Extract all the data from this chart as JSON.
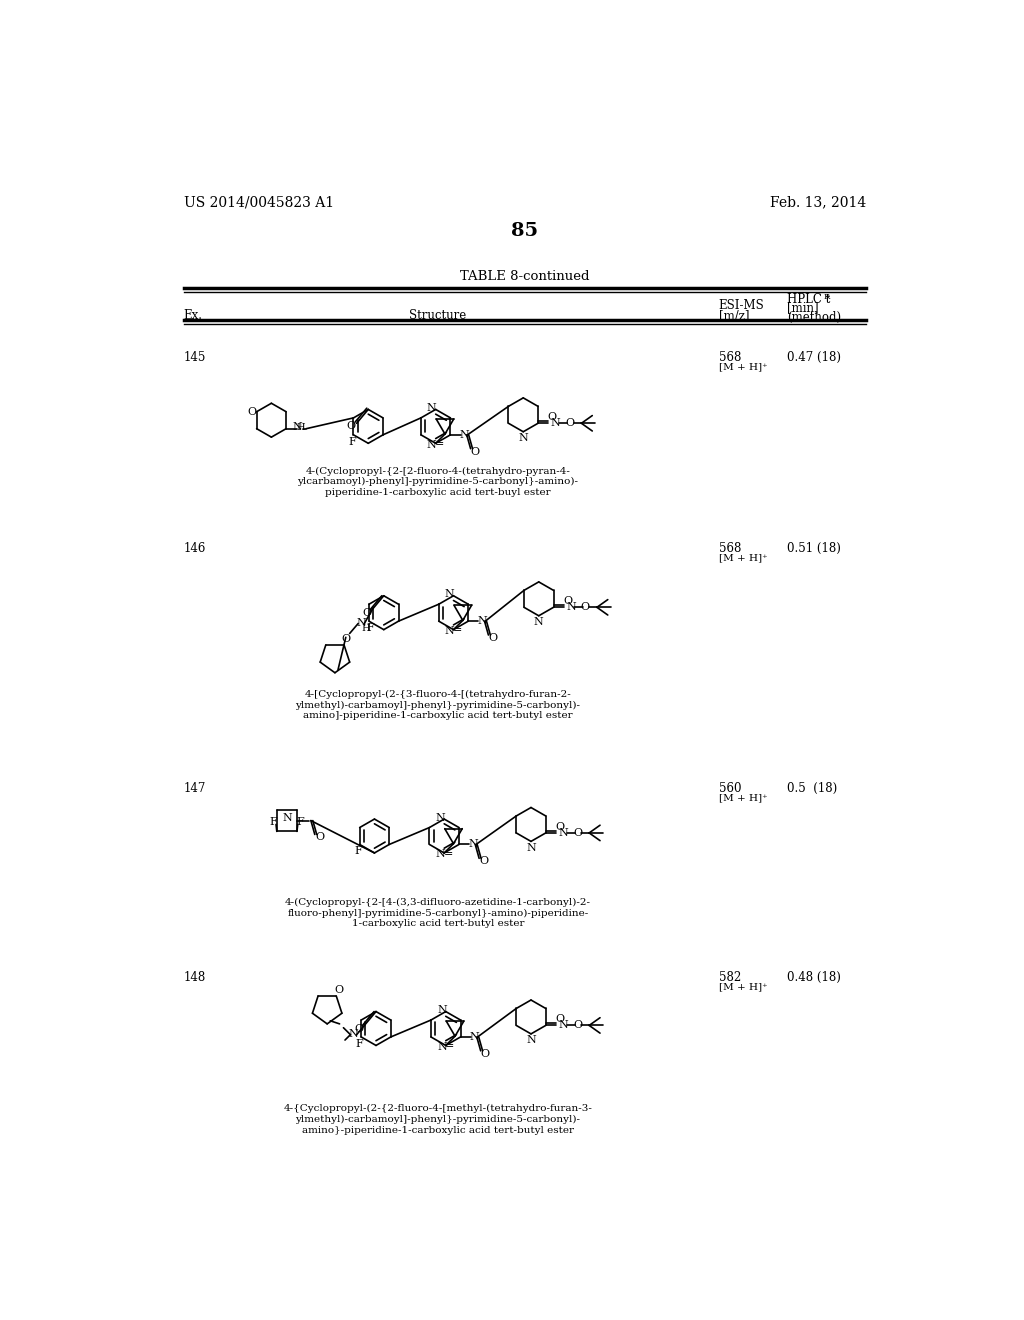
{
  "background_color": "#ffffff",
  "page_number": "85",
  "top_left_text": "US 2014/0045823 A1",
  "top_right_text": "Feb. 13, 2014",
  "table_title": "TABLE 8-continued",
  "rows": [
    {
      "ex": "145",
      "esi_ms_1": "568",
      "esi_ms_2": "[M + H]⁺",
      "hplc": "0.47 (18)",
      "name_lines": [
        "4-(Cyclopropyl-{2-[2-fluoro-4-(tetrahydro-pyran-4-",
        "ylcarbamoyl)-phenyl]-pyrimidine-5-carbonyl}-amino)-",
        "piperidine-1-carboxylic acid tert-buyl ester"
      ]
    },
    {
      "ex": "146",
      "esi_ms_1": "568",
      "esi_ms_2": "[M + H]⁺",
      "hplc": "0.51 (18)",
      "name_lines": [
        "4-[Cyclopropyl-(2-{3-fluoro-4-[(tetrahydro-furan-2-",
        "ylmethyl)-carbamoyl]-phenyl}-pyrimidine-5-carbonyl)-",
        "amino]-piperidine-1-carboxylic acid tert-butyl ester"
      ]
    },
    {
      "ex": "147",
      "esi_ms_1": "560",
      "esi_ms_2": "[M + H]⁺",
      "hplc": "0.5  (18)",
      "name_lines": [
        "4-(Cyclopropyl-{2-[4-(3,3-difluoro-azetidine-1-carbonyl)-2-",
        "fluoro-phenyl]-pyrimidine-5-carbonyl}-amino)-piperidine-",
        "1-carboxylic acid tert-butyl ester"
      ]
    },
    {
      "ex": "148",
      "esi_ms_1": "582",
      "esi_ms_2": "[M + H]⁺",
      "hplc": "0.48 (18)",
      "name_lines": [
        "4-{Cyclopropyl-(2-{2-fluoro-4-[methyl-(tetrahydro-furan-3-",
        "ylmethyl)-carbamoyl]-phenyl}-pyrimidine-5-carbonyl)-",
        "amino}-piperidine-1-carboxylic acid tert-butyl ester"
      ]
    }
  ]
}
